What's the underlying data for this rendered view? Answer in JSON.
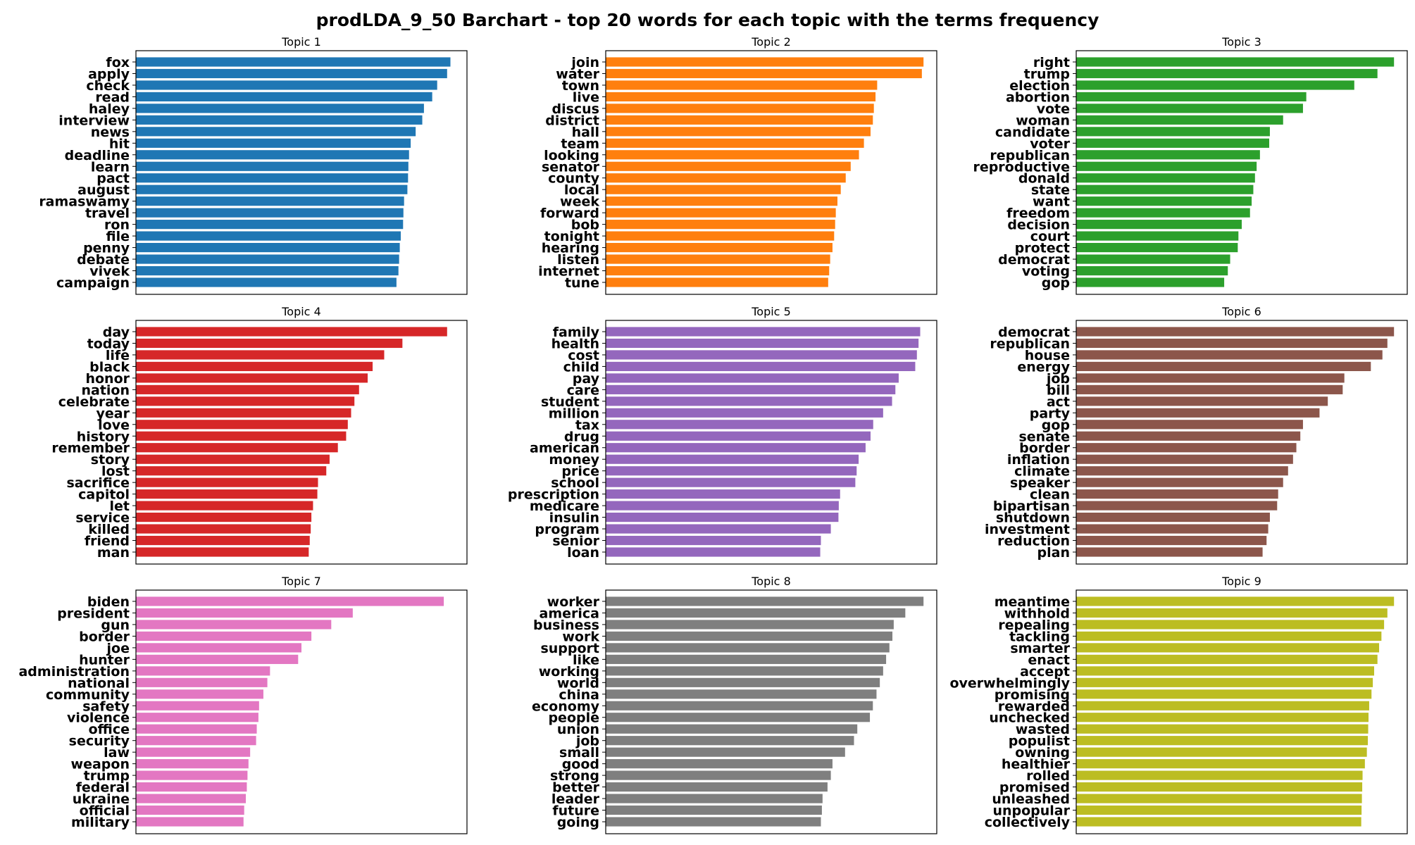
{
  "title": "prodLDA_9_50 Barchart - top 20 words for each topic with the terms frequency",
  "chart_data": [
    {
      "type": "bar",
      "orientation": "horizontal",
      "title": "Topic 1",
      "color": "#1f77b4",
      "categories": [
        "fox",
        "apply",
        "check",
        "read",
        "haley",
        "interview",
        "news",
        "hit",
        "deadline",
        "learn",
        "pact",
        "august",
        "ramaswamy",
        "travel",
        "ron",
        "file",
        "penny",
        "debate",
        "vivek",
        "campaign"
      ],
      "values": [
        0.95,
        0.94,
        0.91,
        0.895,
        0.87,
        0.865,
        0.845,
        0.83,
        0.825,
        0.823,
        0.822,
        0.82,
        0.81,
        0.808,
        0.807,
        0.8,
        0.797,
        0.795,
        0.793,
        0.787
      ]
    },
    {
      "type": "bar",
      "orientation": "horizontal",
      "title": "Topic 2",
      "color": "#ff7f0e",
      "categories": [
        "join",
        "water",
        "town",
        "live",
        "discus",
        "district",
        "hall",
        "team",
        "looking",
        "senator",
        "county",
        "local",
        "week",
        "forward",
        "bob",
        "tonight",
        "hearing",
        "listen",
        "internet",
        "tune"
      ],
      "values": [
        0.96,
        0.955,
        0.82,
        0.815,
        0.81,
        0.807,
        0.8,
        0.78,
        0.765,
        0.74,
        0.725,
        0.71,
        0.7,
        0.695,
        0.693,
        0.69,
        0.685,
        0.678,
        0.675,
        0.672
      ]
    },
    {
      "type": "bar",
      "orientation": "horizontal",
      "title": "Topic 3",
      "color": "#2ca02c",
      "categories": [
        "right",
        "trump",
        "election",
        "abortion",
        "vote",
        "woman",
        "candidate",
        "voter",
        "republican",
        "reproductive",
        "donald",
        "state",
        "want",
        "freedom",
        "decision",
        "court",
        "protect",
        "democrat",
        "voting",
        "gop"
      ],
      "values": [
        0.96,
        0.91,
        0.84,
        0.695,
        0.685,
        0.625,
        0.585,
        0.583,
        0.555,
        0.545,
        0.54,
        0.535,
        0.53,
        0.525,
        0.5,
        0.49,
        0.488,
        0.465,
        0.458,
        0.447
      ]
    },
    {
      "type": "bar",
      "orientation": "horizontal",
      "title": "Topic 4",
      "color": "#d62728",
      "categories": [
        "day",
        "today",
        "life",
        "black",
        "honor",
        "nation",
        "celebrate",
        "year",
        "love",
        "history",
        "remember",
        "story",
        "lost",
        "sacrifice",
        "capitol",
        "let",
        "service",
        "killed",
        "friend",
        "man"
      ],
      "values": [
        0.94,
        0.805,
        0.75,
        0.715,
        0.7,
        0.674,
        0.66,
        0.65,
        0.64,
        0.635,
        0.61,
        0.585,
        0.575,
        0.55,
        0.548,
        0.535,
        0.53,
        0.528,
        0.525,
        0.522
      ]
    },
    {
      "type": "bar",
      "orientation": "horizontal",
      "title": "Topic 5",
      "color": "#9467bd",
      "categories": [
        "family",
        "health",
        "cost",
        "child",
        "pay",
        "care",
        "student",
        "million",
        "tax",
        "drug",
        "american",
        "money",
        "price",
        "school",
        "prescription",
        "medicare",
        "insulin",
        "program",
        "senior",
        "loan"
      ],
      "values": [
        0.95,
        0.945,
        0.94,
        0.935,
        0.885,
        0.875,
        0.865,
        0.838,
        0.808,
        0.8,
        0.785,
        0.764,
        0.758,
        0.754,
        0.708,
        0.704,
        0.703,
        0.68,
        0.65,
        0.648
      ]
    },
    {
      "type": "bar",
      "orientation": "horizontal",
      "title": "Topic 6",
      "color": "#8c564b",
      "categories": [
        "democrat",
        "republican",
        "house",
        "energy",
        "job",
        "bill",
        "act",
        "party",
        "gop",
        "senate",
        "border",
        "inflation",
        "climate",
        "speaker",
        "clean",
        "bipartisan",
        "shutdown",
        "investment",
        "reduction",
        "plan"
      ],
      "values": [
        0.96,
        0.94,
        0.925,
        0.89,
        0.81,
        0.805,
        0.76,
        0.735,
        0.685,
        0.677,
        0.665,
        0.655,
        0.64,
        0.625,
        0.61,
        0.607,
        0.585,
        0.58,
        0.575,
        0.563
      ]
    },
    {
      "type": "bar",
      "orientation": "horizontal",
      "title": "Topic 7",
      "color": "#e377c2",
      "categories": [
        "biden",
        "president",
        "gun",
        "border",
        "joe",
        "hunter",
        "administration",
        "national",
        "community",
        "safety",
        "violence",
        "office",
        "security",
        "law",
        "weapon",
        "trump",
        "federal",
        "ukraine",
        "official",
        "military"
      ],
      "values": [
        0.93,
        0.655,
        0.59,
        0.53,
        0.5,
        0.49,
        0.405,
        0.397,
        0.385,
        0.372,
        0.37,
        0.365,
        0.363,
        0.345,
        0.34,
        0.337,
        0.335,
        0.332,
        0.327,
        0.325
      ]
    },
    {
      "type": "bar",
      "orientation": "horizontal",
      "title": "Topic 8",
      "color": "#7f7f7f",
      "categories": [
        "worker",
        "america",
        "business",
        "work",
        "support",
        "like",
        "working",
        "world",
        "china",
        "economy",
        "people",
        "union",
        "job",
        "small",
        "good",
        "strong",
        "better",
        "leader",
        "future",
        "going"
      ],
      "values": [
        0.96,
        0.905,
        0.87,
        0.866,
        0.857,
        0.847,
        0.838,
        0.828,
        0.818,
        0.807,
        0.798,
        0.76,
        0.75,
        0.723,
        0.685,
        0.68,
        0.67,
        0.655,
        0.653,
        0.65
      ]
    },
    {
      "type": "bar",
      "orientation": "horizontal",
      "title": "Topic 9",
      "color": "#bcbd22",
      "categories": [
        "meantime",
        "withhold",
        "repealing",
        "tackling",
        "smarter",
        "enact",
        "accept",
        "overwhelmingly",
        "promising",
        "rewarded",
        "unchecked",
        "wasted",
        "populist",
        "owning",
        "healthier",
        "rolled",
        "promised",
        "unleashed",
        "unpopular",
        "collectively"
      ],
      "values": [
        0.96,
        0.94,
        0.93,
        0.922,
        0.915,
        0.91,
        0.9,
        0.896,
        0.892,
        0.885,
        0.883,
        0.882,
        0.881,
        0.878,
        0.872,
        0.865,
        0.864,
        0.863,
        0.862,
        0.861
      ]
    }
  ]
}
